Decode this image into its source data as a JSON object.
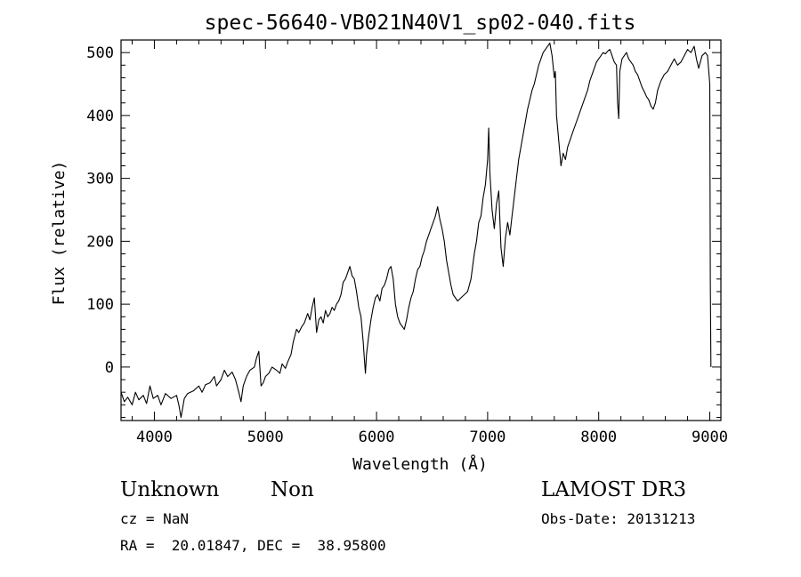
{
  "chart_data": {
    "type": "line",
    "title": "spec-56640-VB021N40V1_sp02-040.fits",
    "xlabel": "Wavelength (Å)",
    "ylabel": "Flux (relative)",
    "xlim": [
      3700,
      9100
    ],
    "ylim": [
      -85,
      520
    ],
    "xticks": [
      {
        "value": 4000,
        "label": "4000"
      },
      {
        "value": 5000,
        "label": "5000"
      },
      {
        "value": 6000,
        "label": "6000"
      },
      {
        "value": 7000,
        "label": "7000"
      },
      {
        "value": 8000,
        "label": "8000"
      },
      {
        "value": 9000,
        "label": "9000"
      }
    ],
    "yticks": [
      {
        "value": 0,
        "label": "0"
      },
      {
        "value": 100,
        "label": "100"
      },
      {
        "value": 200,
        "label": "200"
      },
      {
        "value": 300,
        "label": "300"
      },
      {
        "value": 400,
        "label": "400"
      },
      {
        "value": 500,
        "label": "500"
      }
    ],
    "series": [
      {
        "name": "flux",
        "points": [
          [
            3700,
            -40
          ],
          [
            3730,
            -55
          ],
          [
            3760,
            -48
          ],
          [
            3800,
            -60
          ],
          [
            3830,
            -40
          ],
          [
            3860,
            -52
          ],
          [
            3900,
            -45
          ],
          [
            3930,
            -58
          ],
          [
            3960,
            -30
          ],
          [
            3990,
            -50
          ],
          [
            4030,
            -45
          ],
          [
            4060,
            -60
          ],
          [
            4100,
            -42
          ],
          [
            4150,
            -50
          ],
          [
            4200,
            -45
          ],
          [
            4220,
            -60
          ],
          [
            4240,
            -80
          ],
          [
            4270,
            -50
          ],
          [
            4300,
            -42
          ],
          [
            4350,
            -38
          ],
          [
            4400,
            -30
          ],
          [
            4430,
            -40
          ],
          [
            4460,
            -28
          ],
          [
            4500,
            -25
          ],
          [
            4540,
            -15
          ],
          [
            4560,
            -30
          ],
          [
            4600,
            -20
          ],
          [
            4630,
            -5
          ],
          [
            4660,
            -15
          ],
          [
            4700,
            -8
          ],
          [
            4730,
            -20
          ],
          [
            4760,
            -40
          ],
          [
            4780,
            -55
          ],
          [
            4800,
            -30
          ],
          [
            4830,
            -15
          ],
          [
            4860,
            -5
          ],
          [
            4900,
            0
          ],
          [
            4920,
            15
          ],
          [
            4940,
            25
          ],
          [
            4960,
            -30
          ],
          [
            4980,
            -25
          ],
          [
            5000,
            -15
          ],
          [
            5030,
            -10
          ],
          [
            5060,
            0
          ],
          [
            5100,
            -5
          ],
          [
            5130,
            -10
          ],
          [
            5150,
            5
          ],
          [
            5180,
            -2
          ],
          [
            5200,
            8
          ],
          [
            5230,
            20
          ],
          [
            5250,
            40
          ],
          [
            5280,
            60
          ],
          [
            5300,
            55
          ],
          [
            5330,
            65
          ],
          [
            5350,
            70
          ],
          [
            5380,
            85
          ],
          [
            5400,
            75
          ],
          [
            5420,
            95
          ],
          [
            5440,
            110
          ],
          [
            5460,
            55
          ],
          [
            5480,
            75
          ],
          [
            5500,
            80
          ],
          [
            5520,
            70
          ],
          [
            5540,
            90
          ],
          [
            5560,
            80
          ],
          [
            5580,
            85
          ],
          [
            5600,
            95
          ],
          [
            5620,
            90
          ],
          [
            5640,
            100
          ],
          [
            5660,
            105
          ],
          [
            5680,
            115
          ],
          [
            5700,
            135
          ],
          [
            5720,
            140
          ],
          [
            5740,
            150
          ],
          [
            5760,
            160
          ],
          [
            5780,
            145
          ],
          [
            5800,
            140
          ],
          [
            5820,
            120
          ],
          [
            5840,
            95
          ],
          [
            5860,
            80
          ],
          [
            5880,
            40
          ],
          [
            5890,
            15
          ],
          [
            5900,
            -10
          ],
          [
            5910,
            20
          ],
          [
            5930,
            50
          ],
          [
            5950,
            75
          ],
          [
            5970,
            95
          ],
          [
            5990,
            110
          ],
          [
            6010,
            115
          ],
          [
            6030,
            105
          ],
          [
            6050,
            125
          ],
          [
            6070,
            130
          ],
          [
            6090,
            140
          ],
          [
            6110,
            155
          ],
          [
            6130,
            160
          ],
          [
            6150,
            140
          ],
          [
            6170,
            100
          ],
          [
            6190,
            80
          ],
          [
            6210,
            70
          ],
          [
            6230,
            65
          ],
          [
            6250,
            60
          ],
          [
            6270,
            75
          ],
          [
            6290,
            95
          ],
          [
            6310,
            110
          ],
          [
            6330,
            120
          ],
          [
            6350,
            140
          ],
          [
            6370,
            155
          ],
          [
            6390,
            160
          ],
          [
            6410,
            175
          ],
          [
            6430,
            185
          ],
          [
            6450,
            200
          ],
          [
            6470,
            210
          ],
          [
            6490,
            220
          ],
          [
            6510,
            230
          ],
          [
            6530,
            240
          ],
          [
            6550,
            255
          ],
          [
            6570,
            235
          ],
          [
            6590,
            220
          ],
          [
            6610,
            200
          ],
          [
            6630,
            170
          ],
          [
            6650,
            150
          ],
          [
            6670,
            130
          ],
          [
            6690,
            115
          ],
          [
            6710,
            110
          ],
          [
            6730,
            105
          ],
          [
            6760,
            110
          ],
          [
            6790,
            115
          ],
          [
            6820,
            120
          ],
          [
            6850,
            140
          ],
          [
            6880,
            180
          ],
          [
            6900,
            200
          ],
          [
            6920,
            230
          ],
          [
            6940,
            240
          ],
          [
            6960,
            270
          ],
          [
            6980,
            290
          ],
          [
            7000,
            330
          ],
          [
            7010,
            380
          ],
          [
            7020,
            310
          ],
          [
            7040,
            250
          ],
          [
            7060,
            220
          ],
          [
            7080,
            260
          ],
          [
            7100,
            280
          ],
          [
            7120,
            190
          ],
          [
            7140,
            160
          ],
          [
            7160,
            205
          ],
          [
            7180,
            230
          ],
          [
            7200,
            210
          ],
          [
            7220,
            240
          ],
          [
            7240,
            270
          ],
          [
            7260,
            300
          ],
          [
            7280,
            330
          ],
          [
            7300,
            350
          ],
          [
            7320,
            370
          ],
          [
            7340,
            390
          ],
          [
            7360,
            410
          ],
          [
            7380,
            425
          ],
          [
            7400,
            440
          ],
          [
            7420,
            450
          ],
          [
            7440,
            465
          ],
          [
            7460,
            480
          ],
          [
            7480,
            490
          ],
          [
            7500,
            500
          ],
          [
            7520,
            505
          ],
          [
            7540,
            510
          ],
          [
            7560,
            515
          ],
          [
            7580,
            495
          ],
          [
            7600,
            460
          ],
          [
            7610,
            470
          ],
          [
            7620,
            400
          ],
          [
            7640,
            360
          ],
          [
            7660,
            320
          ],
          [
            7680,
            340
          ],
          [
            7700,
            330
          ],
          [
            7720,
            350
          ],
          [
            7740,
            360
          ],
          [
            7760,
            370
          ],
          [
            7780,
            380
          ],
          [
            7800,
            390
          ],
          [
            7820,
            400
          ],
          [
            7840,
            410
          ],
          [
            7860,
            420
          ],
          [
            7880,
            430
          ],
          [
            7900,
            440
          ],
          [
            7920,
            455
          ],
          [
            7940,
            465
          ],
          [
            7960,
            475
          ],
          [
            7980,
            485
          ],
          [
            8000,
            490
          ],
          [
            8020,
            495
          ],
          [
            8040,
            500
          ],
          [
            8060,
            498
          ],
          [
            8080,
            502
          ],
          [
            8100,
            505
          ],
          [
            8120,
            495
          ],
          [
            8140,
            485
          ],
          [
            8160,
            480
          ],
          [
            8170,
            420
          ],
          [
            8180,
            395
          ],
          [
            8190,
            470
          ],
          [
            8210,
            490
          ],
          [
            8230,
            495
          ],
          [
            8250,
            500
          ],
          [
            8270,
            490
          ],
          [
            8290,
            485
          ],
          [
            8310,
            480
          ],
          [
            8330,
            470
          ],
          [
            8350,
            465
          ],
          [
            8370,
            455
          ],
          [
            8390,
            445
          ],
          [
            8410,
            438
          ],
          [
            8430,
            430
          ],
          [
            8450,
            425
          ],
          [
            8470,
            415
          ],
          [
            8490,
            410
          ],
          [
            8510,
            420
          ],
          [
            8530,
            440
          ],
          [
            8560,
            455
          ],
          [
            8590,
            465
          ],
          [
            8620,
            470
          ],
          [
            8650,
            480
          ],
          [
            8680,
            490
          ],
          [
            8710,
            480
          ],
          [
            8740,
            485
          ],
          [
            8770,
            495
          ],
          [
            8800,
            505
          ],
          [
            8830,
            500
          ],
          [
            8860,
            510
          ],
          [
            8880,
            490
          ],
          [
            8900,
            475
          ],
          [
            8930,
            495
          ],
          [
            8960,
            500
          ],
          [
            8980,
            495
          ],
          [
            9000,
            450
          ],
          [
            9005,
            140
          ],
          [
            9010,
            0
          ]
        ]
      }
    ]
  },
  "info": {
    "object_class": "Unknown",
    "object_subclass": "Non",
    "survey": "LAMOST DR3",
    "redshift": "cz = NaN",
    "obs_date": "Obs-Date: 20131213",
    "coords": "RA =  20.01847, DEC =  38.95800"
  }
}
